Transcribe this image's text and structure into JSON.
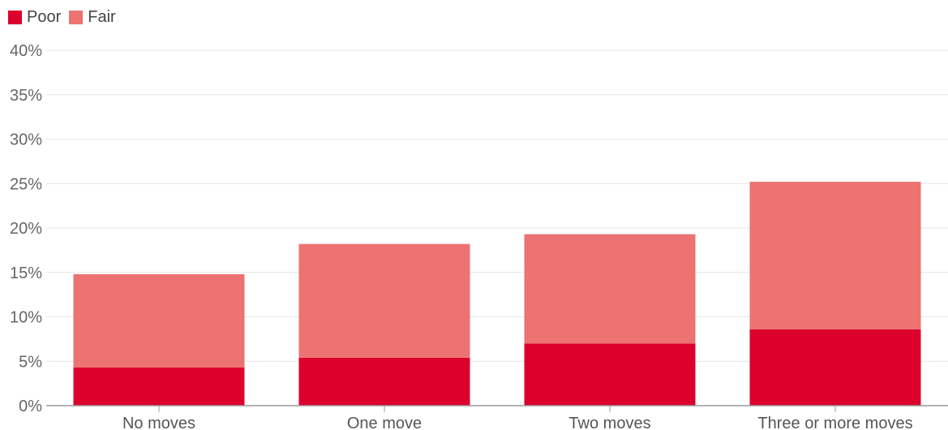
{
  "legend": {
    "items": [
      {
        "label": "Poor",
        "color": "#dc002d"
      },
      {
        "label": "Fair",
        "color": "#ed7272"
      }
    ]
  },
  "chart_data": {
    "type": "bar",
    "stacked": true,
    "categories": [
      "No moves",
      "One move",
      "Two moves",
      "Three or more moves"
    ],
    "series": [
      {
        "name": "Poor",
        "color": "#dc002d",
        "values": [
          4.3,
          5.4,
          7.0,
          8.6
        ]
      },
      {
        "name": "Fair",
        "color": "#ed7272",
        "values": [
          10.5,
          12.8,
          12.3,
          16.6
        ]
      }
    ],
    "y_ticks": [
      "0%",
      "5%",
      "10%",
      "15%",
      "20%",
      "25%",
      "30%",
      "35%",
      "40%"
    ],
    "ylim": [
      0,
      40
    ],
    "grid": true,
    "legend_position": "top-left"
  }
}
